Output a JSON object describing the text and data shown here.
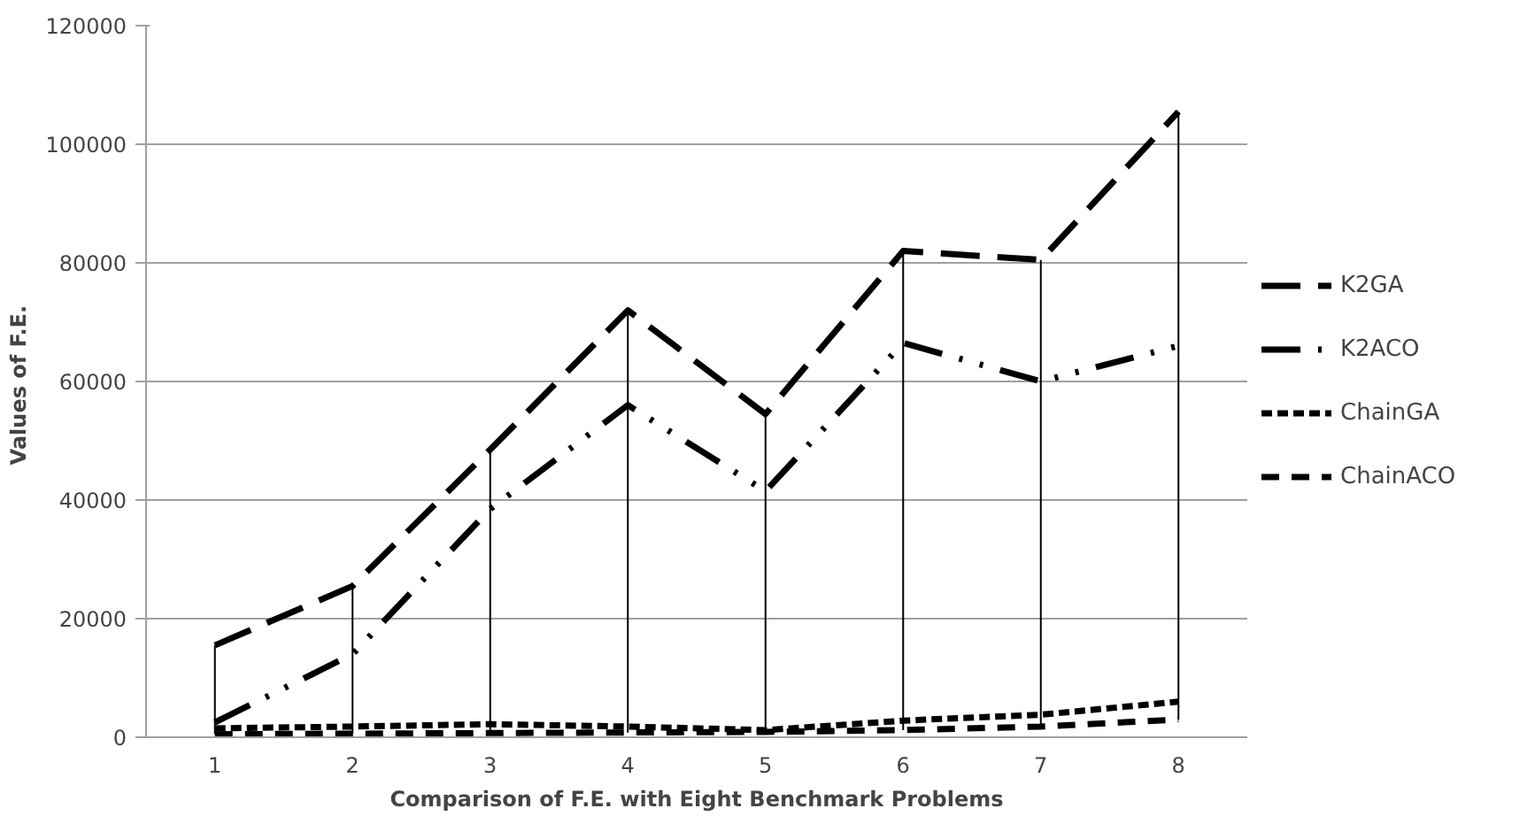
{
  "chart_data": {
    "type": "line",
    "xlabel": "Comparison of F.E. with Eight Benchmark Problems",
    "ylabel": "Values  of F.E.",
    "categories": [
      "1",
      "2",
      "3",
      "4",
      "5",
      "6",
      "7",
      "8"
    ],
    "series": [
      {
        "name": "K2GA",
        "color": "#000000",
        "line_style": "longdash",
        "values": [
          15500,
          25500,
          48500,
          72000,
          54500,
          82000,
          80500,
          105500
        ],
        "errors": [
          [
            500,
            15500
          ],
          [
            600,
            25500
          ],
          [
            700,
            48500
          ],
          [
            800,
            72000
          ],
          [
            900,
            54500
          ],
          [
            1200,
            82000
          ],
          [
            1800,
            80500
          ],
          [
            3000,
            105500
          ]
        ]
      },
      {
        "name": "K2ACO",
        "color": "#000000",
        "line_style": "dashdotdot",
        "values": [
          2500,
          14000,
          38500,
          56000,
          41500,
          66500,
          60000,
          66000
        ]
      },
      {
        "name": "ChainGA",
        "color": "#000000",
        "line_style": "shortdash",
        "values": [
          1500,
          1800,
          2200,
          1800,
          1200,
          2800,
          3800,
          6000
        ]
      },
      {
        "name": "ChainACO",
        "color": "#000000",
        "line_style": "dashed",
        "values": [
          500,
          600,
          700,
          800,
          900,
          1200,
          1800,
          3000
        ]
      }
    ],
    "ylim": [
      0,
      120000
    ],
    "yticks": [
      0,
      20000,
      40000,
      60000,
      80000,
      100000,
      120000
    ],
    "grid": "y",
    "legend": "right",
    "marker": "none"
  }
}
